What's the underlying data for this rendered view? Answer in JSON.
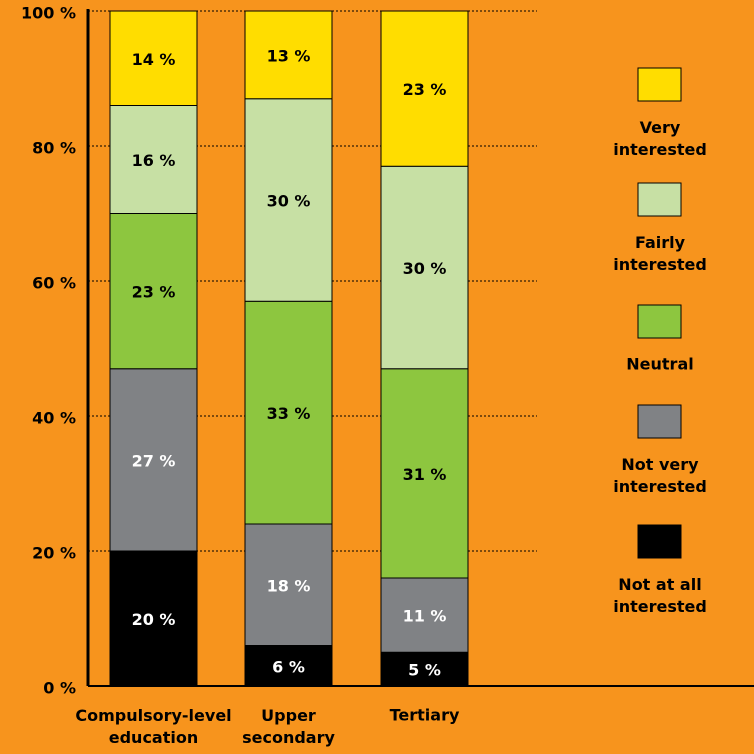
{
  "chart_data": {
    "type": "stacked_bar",
    "categories": [
      "Compulsory-level education",
      "Upper secondary",
      "Tertiary"
    ],
    "series": [
      {
        "name": "Not at all interested",
        "color": "#000000",
        "label_color": "#ffffff",
        "values": [
          20,
          6,
          5
        ],
        "value_labels": [
          "20 %",
          "6 %",
          "5 %"
        ]
      },
      {
        "name": "Not very interested",
        "color": "#808285",
        "label_color": "#ffffff",
        "values": [
          27,
          18,
          11
        ],
        "value_labels": [
          "27 %",
          "18 %",
          "11 %"
        ]
      },
      {
        "name": "Neutral",
        "color": "#8dc63f",
        "label_color": "#000000",
        "values": [
          23,
          33,
          31
        ],
        "value_labels": [
          "23 %",
          "33 %",
          "31 %"
        ]
      },
      {
        "name": "Fairly interested",
        "color": "#c7e0a4",
        "label_color": "#000000",
        "values": [
          16,
          30,
          30
        ],
        "value_labels": [
          "16 %",
          "30 %",
          "30 %"
        ]
      },
      {
        "name": "Very interested",
        "color": "#ffdd00",
        "label_color": "#000000",
        "values": [
          14,
          13,
          23
        ],
        "value_labels": [
          "14 %",
          "13 %",
          "23 %"
        ]
      }
    ],
    "ylim": [
      0,
      100
    ],
    "yticks": [
      {
        "value": 0,
        "label": "0 %"
      },
      {
        "value": 20,
        "label": "20 %"
      },
      {
        "value": 40,
        "label": "40 %"
      },
      {
        "value": 60,
        "label": "60 %"
      },
      {
        "value": 80,
        "label": "80 %"
      },
      {
        "value": 100,
        "label": "100 %"
      }
    ],
    "grid": true
  }
}
